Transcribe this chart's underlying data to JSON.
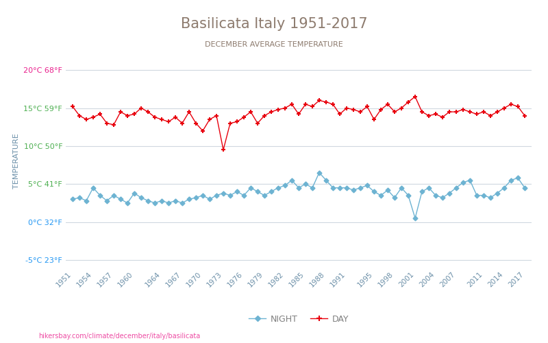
{
  "title": "Basilicata Italy 1951-2017",
  "subtitle": "DECEMBER AVERAGE TEMPERATURE",
  "ylabel": "TEMPERATURE",
  "url_text": "hikersbay.com/climate/december/italy/basilicata",
  "years": [
    1951,
    1952,
    1953,
    1954,
    1955,
    1956,
    1957,
    1958,
    1959,
    1960,
    1961,
    1962,
    1963,
    1964,
    1965,
    1966,
    1967,
    1968,
    1969,
    1970,
    1971,
    1972,
    1973,
    1974,
    1975,
    1976,
    1977,
    1978,
    1979,
    1980,
    1981,
    1982,
    1983,
    1984,
    1985,
    1986,
    1987,
    1988,
    1989,
    1990,
    1991,
    1992,
    1993,
    1994,
    1995,
    1996,
    1997,
    1998,
    1999,
    2000,
    2001,
    2002,
    2003,
    2004,
    2005,
    2006,
    2007,
    2008,
    2009,
    2010,
    2011,
    2012,
    2013,
    2014,
    2015,
    2016,
    2017
  ],
  "day_temps": [
    15.2,
    14.0,
    13.5,
    13.8,
    14.2,
    13.0,
    12.8,
    14.5,
    14.0,
    14.2,
    15.0,
    14.5,
    13.8,
    13.5,
    13.2,
    13.8,
    13.0,
    14.5,
    13.0,
    12.0,
    13.5,
    14.0,
    9.5,
    13.0,
    13.2,
    13.8,
    14.5,
    13.0,
    14.0,
    14.5,
    14.8,
    15.0,
    15.5,
    14.2,
    15.5,
    15.2,
    16.0,
    15.8,
    15.5,
    14.2,
    15.0,
    14.8,
    14.5,
    15.2,
    13.5,
    14.8,
    15.5,
    14.5,
    15.0,
    15.8,
    16.5,
    14.5,
    14.0,
    14.2,
    13.8,
    14.5,
    14.5,
    14.8,
    14.5,
    14.2,
    14.5,
    14.0,
    14.5,
    15.0,
    15.5,
    15.2,
    14.0
  ],
  "night_temps": [
    3.0,
    3.2,
    2.8,
    4.5,
    3.5,
    2.8,
    3.5,
    3.0,
    2.5,
    3.8,
    3.2,
    2.8,
    2.5,
    2.8,
    2.5,
    2.8,
    2.5,
    3.0,
    3.2,
    3.5,
    3.0,
    3.5,
    3.8,
    3.5,
    4.0,
    3.5,
    4.5,
    4.0,
    3.5,
    4.0,
    4.5,
    4.8,
    5.5,
    4.5,
    5.0,
    4.5,
    6.5,
    5.5,
    4.5,
    4.5,
    4.5,
    4.2,
    4.5,
    4.8,
    4.0,
    3.5,
    4.2,
    3.2,
    4.5,
    3.5,
    0.5,
    4.0,
    4.5,
    3.5,
    3.2,
    3.8,
    4.5,
    5.2,
    5.5,
    3.5,
    3.5,
    3.2,
    3.8,
    4.5,
    5.5,
    5.8,
    4.5
  ],
  "day_color": "#e8000d",
  "night_color": "#6db3d2",
  "day_marker": "+",
  "night_marker": "D",
  "xlim": [
    1950,
    2018
  ],
  "ylim": [
    -6,
    22
  ],
  "yticks_celsius": [
    20,
    15,
    10,
    5,
    0,
    -5
  ],
  "yticks_fahrenheit": [
    68,
    59,
    50,
    41,
    32,
    23
  ],
  "ytick_colors": [
    "#e91e8c",
    "#4caf50",
    "#4caf50",
    "#4caf50",
    "#2196f3",
    "#2196f3"
  ],
  "xtick_years": [
    1951,
    1954,
    1957,
    1960,
    1964,
    1967,
    1970,
    1973,
    1976,
    1979,
    1982,
    1985,
    1988,
    1991,
    1995,
    1998,
    2001,
    2004,
    2007,
    2011,
    2014,
    2017
  ],
  "background_color": "#ffffff",
  "grid_color": "#d0d8e0",
  "title_color": "#8d7b6e",
  "subtitle_color": "#8d7b6e",
  "tick_label_color": "#6b8fa8",
  "ylabel_color": "#6b8fa8",
  "legend_night_color": "#6db3d2",
  "legend_day_color": "#e8000d"
}
